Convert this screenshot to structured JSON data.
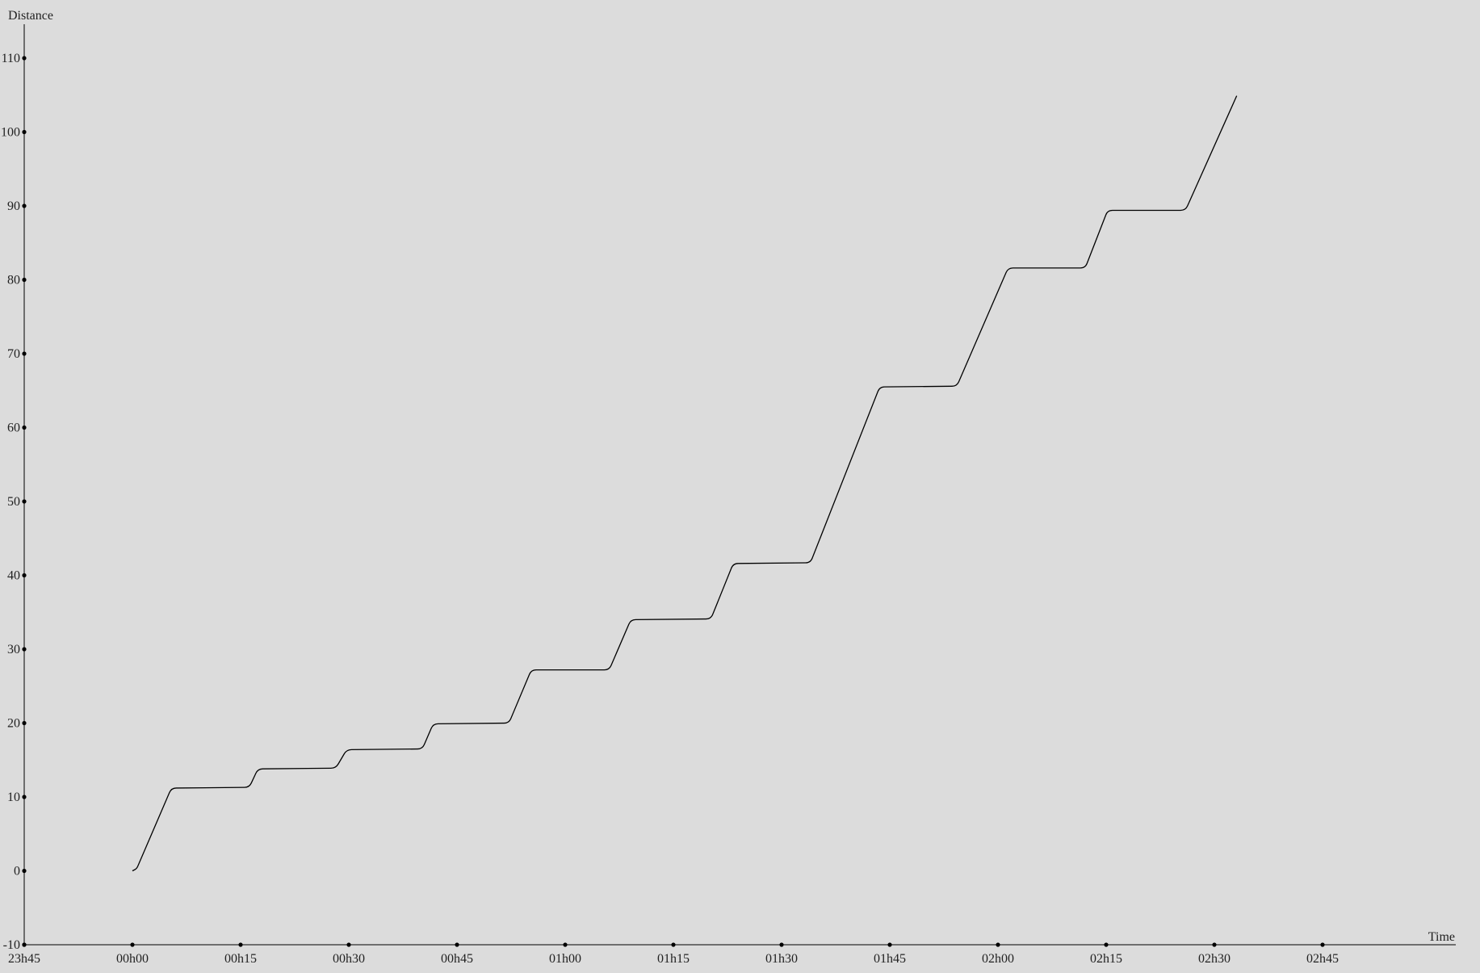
{
  "chart_data": {
    "type": "line",
    "xlabel": "Time",
    "ylabel": "Distance",
    "x_unit": "minutes",
    "ylim": [
      -10,
      110
    ],
    "xlim": [
      -15,
      180
    ],
    "y_ticks": [
      -10,
      0,
      10,
      20,
      30,
      40,
      50,
      60,
      70,
      80,
      90,
      100,
      110
    ],
    "x_ticks": [
      {
        "value": -15,
        "label": "23h45"
      },
      {
        "value": 0,
        "label": "00h00"
      },
      {
        "value": 15,
        "label": "00h15"
      },
      {
        "value": 30,
        "label": "00h30"
      },
      {
        "value": 45,
        "label": "00h45"
      },
      {
        "value": 60,
        "label": "01h00"
      },
      {
        "value": 75,
        "label": "01h15"
      },
      {
        "value": 90,
        "label": "01h30"
      },
      {
        "value": 105,
        "label": "01h45"
      },
      {
        "value": 120,
        "label": "02h00"
      },
      {
        "value": 135,
        "label": "02h15"
      },
      {
        "value": 150,
        "label": "02h30"
      },
      {
        "value": 165,
        "label": "02h45"
      }
    ],
    "grid": false,
    "colors": {
      "background": "#dcdcdc",
      "line": "#000000",
      "axis": "#000000"
    },
    "series": [
      {
        "points": [
          [
            0.0,
            0.0
          ],
          [
            0.6,
            0.3
          ],
          [
            5.4,
            11.2
          ],
          [
            16.2,
            11.3
          ],
          [
            17.4,
            13.8
          ],
          [
            28.2,
            13.9
          ],
          [
            29.7,
            16.4
          ],
          [
            40.2,
            16.5
          ],
          [
            41.7,
            19.9
          ],
          [
            52.2,
            20.0
          ],
          [
            55.3,
            27.2
          ],
          [
            66.1,
            27.2
          ],
          [
            69.1,
            34.0
          ],
          [
            80.2,
            34.1
          ],
          [
            83.3,
            41.6
          ],
          [
            94.0,
            41.7
          ],
          [
            103.6,
            65.5
          ],
          [
            114.3,
            65.6
          ],
          [
            121.4,
            81.6
          ],
          [
            132.1,
            81.6
          ],
          [
            135.2,
            89.4
          ],
          [
            146.0,
            89.4
          ],
          [
            153.1,
            104.9
          ]
        ]
      }
    ]
  }
}
